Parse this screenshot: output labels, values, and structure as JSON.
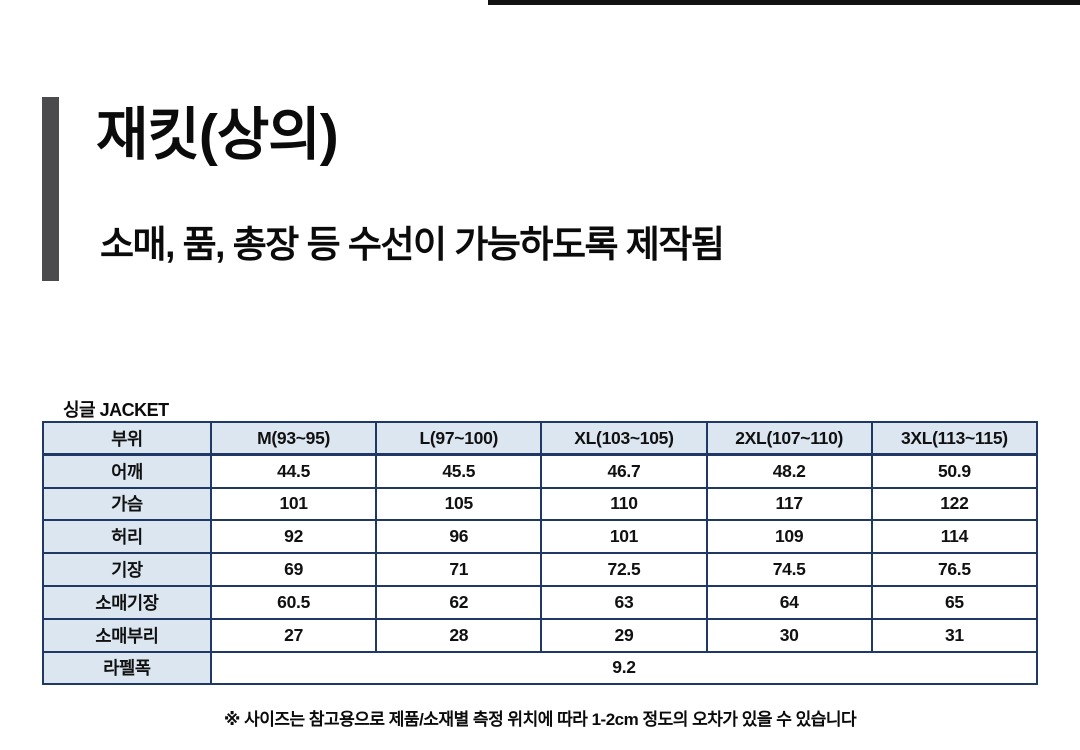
{
  "header": {
    "title": "재킷(상의)",
    "subtitle": "소매, 품, 총장 등 수선이 가능하도록 제작됨"
  },
  "size_chart": {
    "caption": "싱글 JACKET",
    "columns": [
      "부위",
      "M(93~95)",
      "L(97~100)",
      "XL(103~105)",
      "2XL(107~110)",
      "3XL(113~115)"
    ],
    "rows": [
      {
        "label": "어깨",
        "values": [
          "44.5",
          "45.5",
          "46.7",
          "48.2",
          "50.9"
        ]
      },
      {
        "label": "가슴",
        "values": [
          "101",
          "105",
          "110",
          "117",
          "122"
        ]
      },
      {
        "label": "허리",
        "values": [
          "92",
          "96",
          "101",
          "109",
          "114"
        ]
      },
      {
        "label": "기장",
        "values": [
          "69",
          "71",
          "72.5",
          "74.5",
          "76.5"
        ]
      },
      {
        "label": "소매기장",
        "values": [
          "60.5",
          "62",
          "63",
          "64",
          "65"
        ]
      },
      {
        "label": "소매부리",
        "values": [
          "27",
          "28",
          "29",
          "30",
          "31"
        ]
      },
      {
        "label": "라펠폭",
        "values": [
          "9.2"
        ],
        "span": true
      }
    ],
    "footnote": "※ 사이즈는 참고용으로 제품/소재별 측정 위치에 따라 1-2cm 정도의 오차가 있을 수 있습니다"
  },
  "colors": {
    "table_border": "#1F3864",
    "header_cell_bg": "#DCE6F1",
    "accent_bar": "#4B4B4D"
  }
}
